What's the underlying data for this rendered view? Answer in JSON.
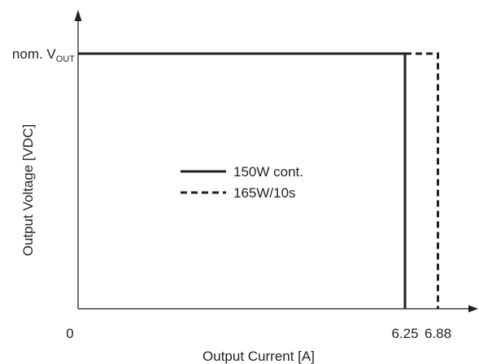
{
  "chart_data": {
    "type": "line",
    "xlabel": "Output Current [A]",
    "ylabel": "Output Voltage [VDC]",
    "x_ticks": [
      {
        "value": 0,
        "label": "0"
      },
      {
        "value": 6.25,
        "label": "6.25"
      },
      {
        "value": 6.88,
        "label": "6.88"
      }
    ],
    "y_tick_label": {
      "main": "nom. V",
      "sub": "OUT"
    },
    "y_level": 1,
    "xlim": [
      0,
      7.65
    ],
    "ylim": [
      0,
      1.0
    ],
    "legend_position": "center",
    "series": [
      {
        "name": "150W cont.",
        "style": "solid",
        "x": [
          0,
          6.25,
          6.25
        ],
        "y": [
          1,
          1,
          0
        ]
      },
      {
        "name": "165W/10s",
        "style": "dashed",
        "x": [
          6.25,
          6.88,
          6.88
        ],
        "y": [
          1,
          1,
          0
        ]
      }
    ],
    "colors": {
      "line": "#231f20",
      "axis": "#231f20"
    }
  }
}
